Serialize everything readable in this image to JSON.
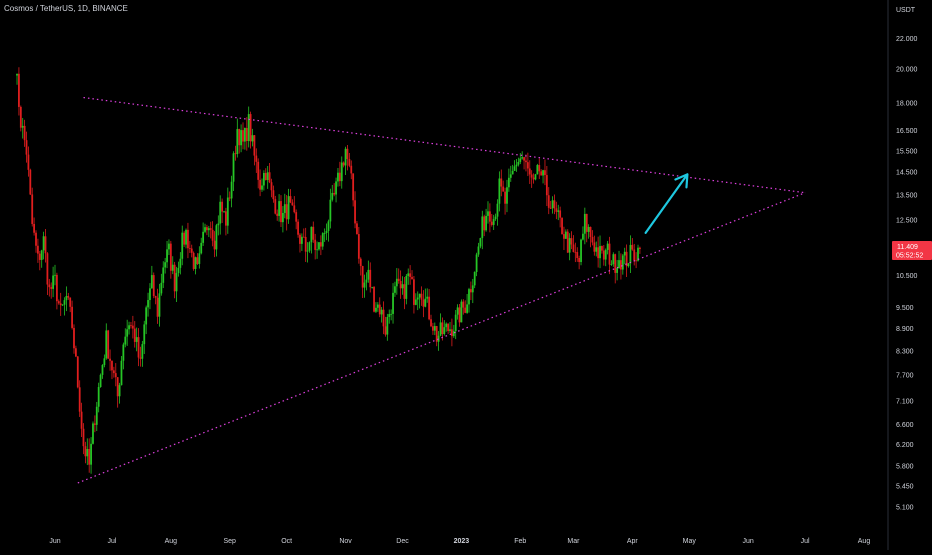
{
  "header": {
    "title": "Cosmos / TetherUS, 1D, BINANCE"
  },
  "colors": {
    "background": "#000000",
    "up_candle": "#26c626",
    "down_candle": "#e01e1e",
    "trendline": "#e040e0",
    "arrow": "#1ec8e0",
    "price_badge": "#f23645",
    "axis_text": "#d1d4dc",
    "axis_line": "#2a2e39"
  },
  "chart_data": {
    "type": "candlestick",
    "symbol": "Cosmos / TetherUS",
    "interval": "1D",
    "exchange": "BINANCE",
    "y_scale": "log",
    "ylim": [
      4.9,
      24.5
    ],
    "grid": false,
    "y_unit_label": "USDT",
    "x_ticks": [
      "Jun",
      "Jul",
      "Aug",
      "Sep",
      "Oct",
      "Nov",
      "Dec",
      "2023",
      "Feb",
      "Mar",
      "Apr",
      "May",
      "Jun",
      "Jul",
      "Aug"
    ],
    "x_tick_dates": [
      "2022-06-01",
      "2022-07-01",
      "2022-08-01",
      "2022-09-01",
      "2022-10-01",
      "2022-11-01",
      "2022-12-01",
      "2023-01-01",
      "2023-02-01",
      "2023-03-01",
      "2023-04-01",
      "2023-05-01",
      "2023-06-01",
      "2023-07-01",
      "2023-08-01"
    ],
    "y_ticks": [
      "22.000",
      "20.000",
      "18.000",
      "16.500",
      "15.500",
      "14.500",
      "13.500",
      "12.500",
      "11.409",
      "10.500",
      "9.500",
      "8.900",
      "8.300",
      "7.700",
      "7.100",
      "6.600",
      "6.200",
      "5.800",
      "5.450",
      "5.100"
    ],
    "y_tick_values": [
      22.0,
      20.0,
      18.0,
      16.5,
      15.5,
      14.5,
      13.5,
      12.5,
      10.5,
      9.5,
      8.9,
      8.3,
      7.7,
      7.1,
      6.6,
      6.2,
      5.8,
      5.45,
      5.1
    ],
    "last_price": {
      "value": 11.409,
      "label": "11.409",
      "countdown": "05:52:52"
    },
    "price_path": [
      [
        "2022-05-11",
        20.3
      ],
      [
        "2022-05-14",
        17.0
      ],
      [
        "2022-05-17",
        15.5
      ],
      [
        "2022-05-20",
        12.3
      ],
      [
        "2022-05-23",
        11.0
      ],
      [
        "2022-05-26",
        11.7
      ],
      [
        "2022-05-29",
        10.0
      ],
      [
        "2022-06-01",
        10.3
      ],
      [
        "2022-06-04",
        9.3
      ],
      [
        "2022-06-07",
        9.8
      ],
      [
        "2022-06-10",
        9.0
      ],
      [
        "2022-06-13",
        7.5
      ],
      [
        "2022-06-16",
        6.2
      ],
      [
        "2022-06-19",
        5.8
      ],
      [
        "2022-06-22",
        6.8
      ],
      [
        "2022-06-25",
        7.7
      ],
      [
        "2022-06-28",
        8.6
      ],
      [
        "2022-07-01",
        7.9
      ],
      [
        "2022-07-04",
        7.2
      ],
      [
        "2022-07-07",
        8.6
      ],
      [
        "2022-07-10",
        9.1
      ],
      [
        "2022-07-13",
        8.7
      ],
      [
        "2022-07-16",
        7.9
      ],
      [
        "2022-07-19",
        9.5
      ],
      [
        "2022-07-22",
        10.2
      ],
      [
        "2022-07-25",
        9.4
      ],
      [
        "2022-07-28",
        10.9
      ],
      [
        "2022-07-31",
        11.3
      ],
      [
        "2022-08-03",
        10.3
      ],
      [
        "2022-08-06",
        11.4
      ],
      [
        "2022-08-09",
        12.0
      ],
      [
        "2022-08-12",
        11.2
      ],
      [
        "2022-08-15",
        10.6
      ],
      [
        "2022-08-18",
        11.7
      ],
      [
        "2022-08-21",
        12.6
      ],
      [
        "2022-08-24",
        11.8
      ],
      [
        "2022-08-27",
        13.0
      ],
      [
        "2022-08-30",
        12.5
      ],
      [
        "2022-09-02",
        14.2
      ],
      [
        "2022-09-05",
        16.6
      ],
      [
        "2022-09-08",
        15.8
      ],
      [
        "2022-09-11",
        16.9
      ],
      [
        "2022-09-14",
        15.2
      ],
      [
        "2022-09-17",
        14.0
      ],
      [
        "2022-09-20",
        14.6
      ],
      [
        "2022-09-23",
        13.5
      ],
      [
        "2022-09-26",
        13.0
      ],
      [
        "2022-09-29",
        12.6
      ],
      [
        "2022-10-02",
        13.1
      ],
      [
        "2022-10-05",
        12.4
      ],
      [
        "2022-10-08",
        11.8
      ],
      [
        "2022-10-11",
        11.4
      ],
      [
        "2022-10-14",
        11.9
      ],
      [
        "2022-10-17",
        11.3
      ],
      [
        "2022-10-20",
        11.8
      ],
      [
        "2022-10-23",
        12.6
      ],
      [
        "2022-10-26",
        13.4
      ],
      [
        "2022-10-29",
        14.4
      ],
      [
        "2022-11-01",
        15.6
      ],
      [
        "2022-11-04",
        14.0
      ],
      [
        "2022-11-07",
        12.0
      ],
      [
        "2022-11-10",
        10.1
      ],
      [
        "2022-11-13",
        10.5
      ],
      [
        "2022-11-16",
        9.7
      ],
      [
        "2022-11-19",
        9.5
      ],
      [
        "2022-11-22",
        8.9
      ],
      [
        "2022-11-25",
        9.6
      ],
      [
        "2022-11-28",
        10.1
      ],
      [
        "2022-12-01",
        9.9
      ],
      [
        "2022-12-04",
        10.5
      ],
      [
        "2022-12-07",
        9.9
      ],
      [
        "2022-12-10",
        10.2
      ],
      [
        "2022-12-13",
        9.7
      ],
      [
        "2022-12-16",
        9.2
      ],
      [
        "2022-12-19",
        8.7
      ],
      [
        "2022-12-22",
        8.8
      ],
      [
        "2022-12-25",
        8.9
      ],
      [
        "2022-12-28",
        9.0
      ],
      [
        "2022-12-31",
        9.3
      ],
      [
        "2023-01-03",
        9.6
      ],
      [
        "2023-01-06",
        10.2
      ],
      [
        "2023-01-09",
        11.1
      ],
      [
        "2023-01-12",
        12.2
      ],
      [
        "2023-01-15",
        13.0
      ],
      [
        "2023-01-18",
        12.6
      ],
      [
        "2023-01-21",
        13.8
      ],
      [
        "2023-01-24",
        13.2
      ],
      [
        "2023-01-27",
        14.1
      ],
      [
        "2023-01-30",
        15.0
      ],
      [
        "2023-02-02",
        15.2
      ],
      [
        "2023-02-05",
        14.5
      ],
      [
        "2023-02-08",
        13.8
      ],
      [
        "2023-02-11",
        14.6
      ],
      [
        "2023-02-14",
        13.9
      ],
      [
        "2023-02-17",
        13.1
      ],
      [
        "2023-02-20",
        12.6
      ],
      [
        "2023-02-23",
        12.2
      ],
      [
        "2023-02-26",
        11.6
      ],
      [
        "2023-03-01",
        11.2
      ],
      [
        "2023-03-04",
        11.0
      ],
      [
        "2023-03-07",
        12.4
      ],
      [
        "2023-03-10",
        11.9
      ],
      [
        "2023-03-13",
        11.4
      ],
      [
        "2023-03-16",
        11.1
      ],
      [
        "2023-03-19",
        11.3
      ],
      [
        "2023-03-22",
        10.9
      ],
      [
        "2023-03-25",
        11.1
      ],
      [
        "2023-03-28",
        11.0
      ],
      [
        "2023-03-31",
        11.2
      ],
      [
        "2023-04-03",
        11.3
      ],
      [
        "2023-04-05",
        11.409
      ]
    ],
    "annotations": {
      "upper_trendline": {
        "from": [
          "2022-06-16",
          18.3
        ],
        "to": [
          "2023-07-01",
          13.6
        ]
      },
      "lower_trendline": {
        "from": [
          "2022-06-13",
          5.5
        ],
        "to": [
          "2023-07-01",
          13.6
        ]
      },
      "projection_arrow": {
        "from": [
          "2023-04-08",
          12.0
        ],
        "to": [
          "2023-04-30",
          14.4
        ],
        "direction": "up"
      }
    }
  }
}
